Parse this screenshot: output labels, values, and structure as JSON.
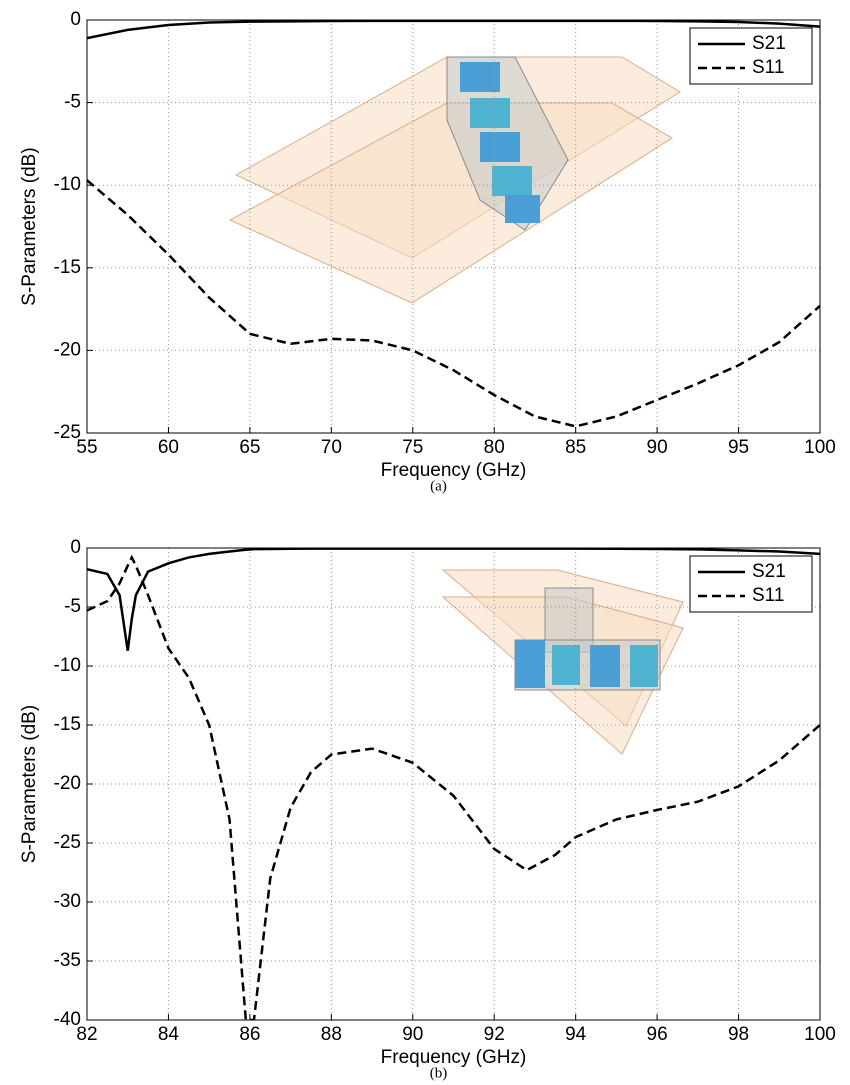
{
  "chart_data": [
    {
      "type": "line",
      "caption": "(a)",
      "x_label": "Frequency (GHz)",
      "y_label": "S-Parameters (dB)",
      "x": [
        55,
        57.5,
        60,
        62.5,
        65,
        67.5,
        70,
        72.5,
        75,
        77.5,
        80,
        82.5,
        85,
        87.5,
        90,
        92.5,
        95,
        97.5,
        100
      ],
      "series": [
        {
          "name": "S21",
          "color": "#000000",
          "line_style": "solid",
          "values": [
            -1.1,
            -0.6,
            -0.3,
            -0.15,
            -0.1,
            -0.08,
            -0.06,
            -0.05,
            -0.05,
            -0.05,
            -0.05,
            -0.05,
            -0.05,
            -0.05,
            -0.06,
            -0.08,
            -0.12,
            -0.22,
            -0.4
          ]
        },
        {
          "name": "S11",
          "color": "#000000",
          "line_style": "dashed",
          "values": [
            -9.7,
            -11.8,
            -14.2,
            -16.8,
            -19.0,
            -19.6,
            -19.3,
            -19.4,
            -20.0,
            -21.2,
            -22.7,
            -24.0,
            -24.6,
            -24.0,
            -23.0,
            -22.0,
            -20.9,
            -19.5,
            -17.3
          ]
        }
      ],
      "xlim": [
        55,
        100
      ],
      "xticks": [
        55,
        60,
        65,
        70,
        75,
        80,
        85,
        90,
        95,
        100
      ],
      "ylim": [
        -25,
        0
      ],
      "yticks": [
        -25,
        -20,
        -15,
        -10,
        -5,
        0
      ],
      "grid": true,
      "legend": "upper right"
    },
    {
      "type": "line",
      "caption": "(b)",
      "x_label": "Frequency (GHz)",
      "y_label": "S-Parameters (dB)",
      "x": [
        82,
        82.5,
        82.8,
        83,
        83.1,
        83.2,
        83.5,
        84,
        84.5,
        85,
        85.5,
        85.9,
        86.1,
        86.5,
        87,
        87.5,
        88,
        89,
        90,
        91,
        92,
        92.8,
        93.5,
        94,
        95,
        96,
        97,
        98,
        99,
        100
      ],
      "series": [
        {
          "name": "S21",
          "color": "#000000",
          "line_style": "solid",
          "values": [
            -1.8,
            -2.2,
            -4.0,
            -8.7,
            -6.0,
            -4.0,
            -2.0,
            -1.3,
            -0.8,
            -0.5,
            -0.3,
            -0.15,
            -0.1,
            -0.08,
            -0.06,
            -0.05,
            -0.05,
            -0.05,
            -0.05,
            -0.05,
            -0.05,
            -0.05,
            -0.05,
            -0.05,
            -0.06,
            -0.08,
            -0.12,
            -0.2,
            -0.3,
            -0.5
          ]
        },
        {
          "name": "S11",
          "color": "#000000",
          "line_style": "dashed",
          "values": [
            -5.3,
            -4.5,
            -3.0,
            -1.5,
            -0.8,
            -1.5,
            -4.0,
            -8.5,
            -11.0,
            -15.0,
            -23.0,
            -40.0,
            -40.0,
            -28.0,
            -22.0,
            -19.0,
            -17.5,
            -17.0,
            -18.2,
            -21.0,
            -25.5,
            -27.3,
            -26.0,
            -24.5,
            -23.0,
            -22.2,
            -21.5,
            -20.2,
            -18.0,
            -15.0
          ]
        }
      ],
      "xlim": [
        82,
        100
      ],
      "xticks": [
        82,
        84,
        86,
        88,
        90,
        92,
        94,
        96,
        98,
        100
      ],
      "ylim": [
        -40,
        0
      ],
      "yticks": [
        -40,
        -35,
        -30,
        -25,
        -20,
        -15,
        -10,
        -5,
        0
      ],
      "grid": true,
      "legend": "upper right"
    }
  ]
}
